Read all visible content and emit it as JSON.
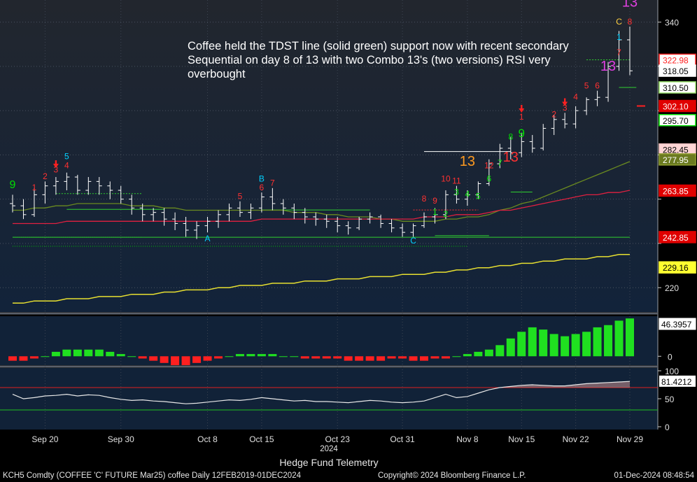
{
  "chart_data": {
    "type": "candlestick",
    "price_axis": {
      "range": [
        209,
        350
      ],
      "ticks": [
        220,
        240,
        260,
        280,
        300,
        320,
        340
      ],
      "tick_labels": [
        "220",
        "",
        "",
        "",
        "",
        "",
        "340"
      ]
    },
    "x_labels": [
      {
        "i": 3,
        "label": "Sep 20"
      },
      {
        "i": 10,
        "label": "Sep 30"
      },
      {
        "i": 18,
        "label": "Oct 8"
      },
      {
        "i": 23,
        "label": "Oct 15"
      },
      {
        "i": 30,
        "label": "Oct 23"
      },
      {
        "i": 36,
        "label": "Oct 31"
      },
      {
        "i": 42,
        "label": "Nov 8"
      },
      {
        "i": 47,
        "label": "Nov 15"
      },
      {
        "i": 52,
        "label": "Nov 22"
      },
      {
        "i": 57,
        "label": "Nov 29"
      }
    ],
    "year_label": "2024",
    "ohlc": [
      [
        258,
        262,
        254,
        257
      ],
      [
        257,
        260,
        251,
        253
      ],
      [
        253,
        265,
        252,
        262
      ],
      [
        262,
        268,
        258,
        266
      ],
      [
        266,
        270,
        262,
        268
      ],
      [
        268,
        272,
        264,
        270
      ],
      [
        270,
        271,
        262,
        264
      ],
      [
        264,
        270,
        262,
        268
      ],
      [
        268,
        270,
        262,
        266
      ],
      [
        266,
        268,
        260,
        264
      ],
      [
        264,
        266,
        258,
        260
      ],
      [
        260,
        262,
        253,
        256
      ],
      [
        256,
        258,
        250,
        253
      ],
      [
        253,
        256,
        250,
        254
      ],
      [
        254,
        256,
        248,
        251
      ],
      [
        251,
        254,
        246,
        249
      ],
      [
        249,
        252,
        243,
        246
      ],
      [
        246,
        250,
        242,
        248
      ],
      [
        248,
        252,
        245,
        250
      ],
      [
        250,
        255,
        247,
        253
      ],
      [
        253,
        258,
        250,
        256
      ],
      [
        256,
        259,
        252,
        254
      ],
      [
        254,
        258,
        251,
        256
      ],
      [
        256,
        263,
        254,
        261
      ],
      [
        261,
        265,
        255,
        258
      ],
      [
        258,
        260,
        253,
        256
      ],
      [
        256,
        258,
        251,
        254
      ],
      [
        254,
        256,
        249,
        252
      ],
      [
        252,
        254,
        248,
        251
      ],
      [
        251,
        253,
        247,
        250
      ],
      [
        250,
        252,
        245,
        248
      ],
      [
        248,
        250,
        244,
        247
      ],
      [
        247,
        252,
        246,
        251
      ],
      [
        251,
        254,
        249,
        252
      ],
      [
        252,
        253,
        247,
        249
      ],
      [
        249,
        251,
        245,
        247
      ],
      [
        247,
        249,
        243,
        245
      ],
      [
        245,
        249,
        243,
        248
      ],
      [
        248,
        254,
        247,
        252
      ],
      [
        252,
        256,
        249,
        253
      ],
      [
        253,
        264,
        251,
        262
      ],
      [
        262,
        266,
        258,
        260
      ],
      [
        260,
        264,
        257,
        262
      ],
      [
        262,
        268,
        260,
        267
      ],
      [
        267,
        278,
        266,
        276
      ],
      [
        276,
        285,
        274,
        283
      ],
      [
        283,
        288,
        278,
        281
      ],
      [
        281,
        290,
        279,
        286
      ],
      [
        286,
        289,
        281,
        283
      ],
      [
        283,
        294,
        282,
        292
      ],
      [
        292,
        298,
        289,
        296
      ],
      [
        296,
        299,
        292,
        294
      ],
      [
        294,
        302,
        292,
        300
      ],
      [
        300,
        306,
        298,
        305
      ],
      [
        305,
        309,
        302,
        306
      ],
      [
        306,
        322,
        304,
        320
      ],
      [
        320,
        336,
        318,
        332
      ],
      [
        332,
        338,
        316,
        318
      ]
    ],
    "sma_green": [
      255,
      255,
      256,
      256,
      257,
      257,
      258,
      258,
      258,
      258,
      258,
      257,
      257,
      257,
      256,
      256,
      255,
      255,
      255,
      255,
      255,
      255,
      255,
      255,
      255,
      255,
      254,
      254,
      254,
      253,
      253,
      252,
      252,
      252,
      251,
      251,
      250,
      250,
      250,
      250,
      251,
      251,
      252,
      252,
      253,
      255,
      256,
      258,
      259,
      261,
      263,
      265,
      267,
      269,
      271,
      273,
      275,
      277
    ],
    "sma_red": [
      249,
      249,
      249,
      249,
      249,
      250,
      250,
      250,
      250,
      250,
      250,
      250,
      250,
      250,
      250,
      250,
      250,
      250,
      250,
      250,
      250,
      250,
      250,
      251,
      251,
      251,
      251,
      251,
      251,
      251,
      251,
      251,
      251,
      251,
      251,
      251,
      251,
      251,
      252,
      252,
      252,
      253,
      253,
      253,
      254,
      255,
      255,
      256,
      257,
      258,
      259,
      260,
      261,
      262,
      262,
      263,
      263,
      264
    ],
    "sma_yellow": [
      213,
      213,
      214,
      214,
      214,
      215,
      215,
      215,
      216,
      216,
      216,
      217,
      217,
      217,
      218,
      218,
      219,
      219,
      219,
      220,
      220,
      221,
      221,
      221,
      222,
      222,
      222,
      223,
      223,
      223,
      224,
      224,
      224,
      225,
      225,
      225,
      226,
      226,
      226,
      227,
      227,
      228,
      228,
      229,
      229,
      230,
      230,
      231,
      231,
      232,
      232,
      233,
      233,
      233,
      234,
      234,
      235,
      235
    ],
    "price_tags": [
      {
        "value": "322.98",
        "y": 323.0,
        "color": "#ff2020",
        "text": "#ff2020",
        "bg": "#ffffff"
      },
      {
        "value": "318.05",
        "y": 318.05,
        "color": "#ffffff",
        "text": "#000000",
        "bg": "#ffffff"
      },
      {
        "value": "310.50",
        "y": 310.5,
        "color": "#9fe870",
        "text": "#000000",
        "bg": "#ffffff"
      },
      {
        "value": "302.10",
        "y": 302.1,
        "color": "#e00000",
        "text": "#ffffff",
        "bg": "#e00000"
      },
      {
        "value": "295.70",
        "y": 295.7,
        "color": "#00e000",
        "text": "#000000",
        "bg": "#ffffff"
      },
      {
        "value": "282.45",
        "y": 282.45,
        "color": "#f4c2c2",
        "text": "#000000",
        "bg": "#ffd6d6"
      },
      {
        "value": "277.95",
        "y": 277.95,
        "color": "#8fa030",
        "text": "#ffffff",
        "bg": "#6b7a20"
      },
      {
        "value": "263.85",
        "y": 263.85,
        "color": "#e00000",
        "text": "#ffffff",
        "bg": "#e00000"
      },
      {
        "value": "242.85",
        "y": 242.85,
        "color": "#e00000",
        "text": "#ffffff",
        "bg": "#e00000"
      },
      {
        "value": "229.16",
        "y": 229.16,
        "color": "#ffff30",
        "text": "#000000",
        "bg": "#ffff30"
      }
    ],
    "td_labels": [
      {
        "i": 0,
        "t": "9",
        "c": "#00e000",
        "y": 265,
        "s": 16
      },
      {
        "i": 2,
        "t": "1",
        "c": "#ff3030",
        "y": 264
      },
      {
        "i": 3,
        "t": "2",
        "c": "#ff3030",
        "y": 269
      },
      {
        "i": 4,
        "t": "3",
        "c": "#ff3030",
        "y": 272
      },
      {
        "i": 5,
        "t": "4",
        "c": "#ff3030",
        "y": 274
      },
      {
        "i": 5,
        "t": "5",
        "c": "#00d0ff",
        "y": 278
      },
      {
        "i": 18,
        "t": "A",
        "c": "#00d0ff",
        "y": 241
      },
      {
        "i": 21,
        "t": "5",
        "c": "#ff3030",
        "y": 260
      },
      {
        "i": 23,
        "t": "6",
        "c": "#ff3030",
        "y": 264
      },
      {
        "i": 23,
        "t": "B",
        "c": "#00d0ff",
        "y": 268
      },
      {
        "i": 24,
        "t": "7",
        "c": "#ff3030",
        "y": 266
      },
      {
        "i": 37,
        "t": "C",
        "c": "#00d0ff",
        "y": 240
      },
      {
        "i": 38,
        "t": "8",
        "c": "#ff3030",
        "y": 259
      },
      {
        "i": 39,
        "t": "9",
        "c": "#ff3030",
        "y": 258
      },
      {
        "i": 39,
        "t": "1",
        "c": "#00e000",
        "y": 253
      },
      {
        "i": 40,
        "t": "2",
        "c": "#00e000",
        "y": 252
      },
      {
        "i": 40,
        "t": "10",
        "c": "#ff3030",
        "y": 268
      },
      {
        "i": 41,
        "t": "3",
        "c": "#00e000",
        "y": 262
      },
      {
        "i": 41,
        "t": "11",
        "c": "#ff3030",
        "y": 267
      },
      {
        "i": 42,
        "t": "4",
        "c": "#00e000",
        "y": 261
      },
      {
        "i": 43,
        "t": "5",
        "c": "#00e000",
        "y": 260
      },
      {
        "i": 42,
        "t": "13",
        "c": "#ff9a20",
        "y": 275,
        "s": 20
      },
      {
        "i": 44,
        "t": "6",
        "c": "#00e000",
        "y": 268
      },
      {
        "i": 44,
        "t": "12",
        "c": "#ff3030",
        "y": 274
      },
      {
        "i": 45,
        "t": "7",
        "c": "#00e000",
        "y": 275
      },
      {
        "i": 46,
        "t": "8",
        "c": "#00e000",
        "y": 287
      },
      {
        "i": 46,
        "t": "13",
        "c": "#ff3030",
        "y": 277,
        "s": 20
      },
      {
        "i": 47,
        "t": "9",
        "c": "#00e000",
        "y": 288,
        "s": 17
      },
      {
        "i": 47,
        "t": "1",
        "c": "#ff3030",
        "y": 296
      },
      {
        "i": 50,
        "t": "2",
        "c": "#ff3030",
        "y": 297
      },
      {
        "i": 51,
        "t": "3",
        "c": "#ff3030",
        "y": 300
      },
      {
        "i": 52,
        "t": "4",
        "c": "#ff3030",
        "y": 305
      },
      {
        "i": 53,
        "t": "5",
        "c": "#ff3030",
        "y": 310
      },
      {
        "i": 54,
        "t": "6",
        "c": "#ff3030",
        "y": 310
      },
      {
        "i": 55,
        "t": "13",
        "c": "#e040e0",
        "y": 318,
        "s": 20
      },
      {
        "i": 56,
        "t": "7",
        "c": "#ff3030",
        "y": 325
      },
      {
        "i": 56,
        "t": "1",
        "c": "#00d0ff",
        "y": 332
      },
      {
        "i": 56,
        "t": "C",
        "c": "#ffd040",
        "y": 339
      },
      {
        "i": 57,
        "t": "8",
        "c": "#ff3030",
        "y": 339
      },
      {
        "i": 57,
        "t": "13",
        "c": "#e040e0",
        "y": 347,
        "s": 20
      }
    ],
    "macd_hist": [
      -2,
      -2,
      -1,
      0,
      2,
      3,
      3,
      3,
      3,
      2,
      1,
      0,
      -1,
      -2,
      -3,
      -4,
      -4,
      -3,
      -2,
      -1,
      0,
      1,
      1,
      1,
      1,
      0,
      0,
      -1,
      -1,
      -1,
      -1,
      -2,
      -2,
      -2,
      -2,
      -1,
      -1,
      -2,
      -2,
      -1,
      -1,
      0,
      1,
      2,
      3,
      5,
      8,
      11,
      13,
      12,
      10,
      9,
      10,
      11,
      13,
      14,
      16,
      17
    ],
    "macd_axis": {
      "range": [
        -4,
        18
      ],
      "ticks": [
        0
      ],
      "tick_labels": [
        "0"
      ]
    },
    "macd_value": "46.3957",
    "rsi": [
      58,
      50,
      52,
      55,
      56,
      58,
      55,
      57,
      56,
      52,
      49,
      47,
      48,
      46,
      45,
      43,
      41,
      42,
      44,
      46,
      48,
      47,
      49,
      52,
      50,
      48,
      46,
      47,
      45,
      45,
      44,
      43,
      45,
      47,
      46,
      44,
      43,
      44,
      46,
      52,
      58,
      52,
      54,
      60,
      66,
      70,
      72,
      74,
      75,
      74,
      73,
      73,
      75,
      77,
      78,
      79,
      80,
      81
    ],
    "rsi_axis": {
      "range": [
        -5,
        105
      ],
      "ticks": [
        0,
        50,
        100
      ],
      "tick_labels": [
        "0",
        "50",
        "100"
      ],
      "overbought": 70,
      "oversold": 30
    },
    "rsi_value": "81.4212"
  },
  "annotation": "Coffee held the TDST line (solid green) support now with recent secondary Sequential on day 8 of 13 with two Combo 13's (two versions) RSI very overbought",
  "footer": {
    "title": "Hedge Fund Telemetry",
    "left": "KCH5 Comdty (COFFEE 'C' FUTURE Mar25) coffee  Daily 12FEB2019-01DEC2024",
    "mid": "Copyright© 2024 Bloomberg Finance L.P.",
    "right": "01-Dec-2024 08:48:54"
  }
}
